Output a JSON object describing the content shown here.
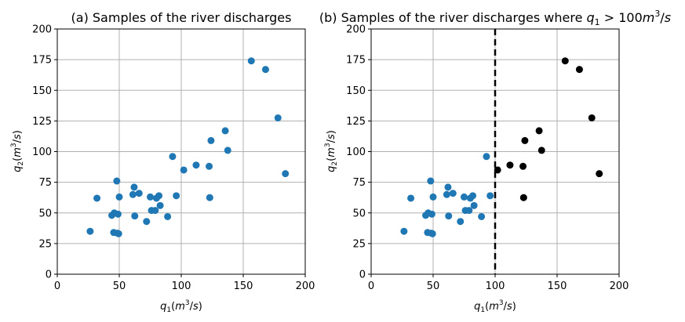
{
  "chart_data": [
    {
      "type": "scatter",
      "title": "(a) Samples of the river discharges",
      "xlabel": "q1(m3/s)",
      "ylabel": "q2(m3/s)",
      "xlim": [
        0,
        200
      ],
      "ylim": [
        0,
        200
      ],
      "xticks": [
        "0",
        "50",
        "100",
        "150",
        "200"
      ],
      "yticks": [
        "0",
        "25",
        "50",
        "75",
        "100",
        "125",
        "150",
        "175",
        "200"
      ],
      "grid": true,
      "point_color": "#1f77b4",
      "points": [
        [
          26.5,
          35
        ],
        [
          32,
          62
        ],
        [
          44,
          48
        ],
        [
          45.5,
          34
        ],
        [
          46,
          50
        ],
        [
          48,
          76
        ],
        [
          48.5,
          33.5
        ],
        [
          49,
          49
        ],
        [
          49.5,
          33
        ],
        [
          50,
          63
        ],
        [
          61,
          65
        ],
        [
          62,
          71
        ],
        [
          62.5,
          47.5
        ],
        [
          66,
          66
        ],
        [
          72,
          43
        ],
        [
          75,
          63
        ],
        [
          76,
          52
        ],
        [
          79,
          52
        ],
        [
          80,
          62
        ],
        [
          82,
          64
        ],
        [
          83,
          56
        ],
        [
          89,
          47
        ],
        [
          93,
          96
        ],
        [
          96,
          64
        ],
        [
          102,
          85
        ],
        [
          112,
          89
        ],
        [
          122.5,
          88
        ],
        [
          123,
          62.5
        ],
        [
          124,
          109
        ],
        [
          135.5,
          117
        ],
        [
          137.5,
          101
        ],
        [
          156.5,
          174
        ],
        [
          168,
          167
        ],
        [
          178,
          127.5
        ],
        [
          184,
          82
        ]
      ]
    },
    {
      "type": "scatter",
      "title": "(b) Samples of the river discharges where q1 > 100m3/s",
      "xlabel": "q1(m3/s)",
      "ylabel": "q2(m3/s)",
      "xlim": [
        0,
        200
      ],
      "ylim": [
        0,
        200
      ],
      "xticks": [
        "0",
        "50",
        "100",
        "150",
        "200"
      ],
      "yticks": [
        "0",
        "25",
        "50",
        "75",
        "100",
        "125",
        "150",
        "175",
        "200"
      ],
      "grid": true,
      "threshold_x": 100,
      "series": [
        {
          "color": "#1f77b4",
          "points": [
            [
              26.5,
              35
            ],
            [
              32,
              62
            ],
            [
              44,
              48
            ],
            [
              45.5,
              34
            ],
            [
              46,
              50
            ],
            [
              48,
              76
            ],
            [
              48.5,
              33.5
            ],
            [
              49,
              49
            ],
            [
              49.5,
              33
            ],
            [
              50,
              63
            ],
            [
              61,
              65
            ],
            [
              62,
              71
            ],
            [
              62.5,
              47.5
            ],
            [
              66,
              66
            ],
            [
              72,
              43
            ],
            [
              75,
              63
            ],
            [
              76,
              52
            ],
            [
              79,
              52
            ],
            [
              80,
              62
            ],
            [
              82,
              64
            ],
            [
              83,
              56
            ],
            [
              89,
              47
            ],
            [
              93,
              96
            ],
            [
              96,
              64
            ]
          ]
        },
        {
          "color": "#000000",
          "points": [
            [
              102,
              85
            ],
            [
              112,
              89
            ],
            [
              122.5,
              88
            ],
            [
              123,
              62.5
            ],
            [
              124,
              109
            ],
            [
              135.5,
              117
            ],
            [
              137.5,
              101
            ],
            [
              156.5,
              174
            ],
            [
              168,
              167
            ],
            [
              178,
              127.5
            ],
            [
              184,
              82
            ]
          ]
        }
      ]
    }
  ]
}
